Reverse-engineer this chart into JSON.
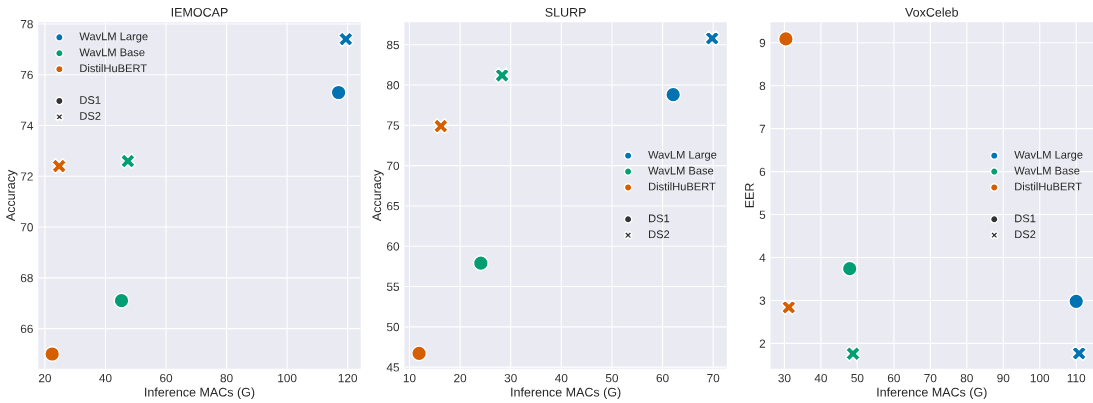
{
  "chart_data": [
    {
      "type": "scatter",
      "title": "IEMOCAP",
      "xlabel": "Inference MACs (G)",
      "ylabel": "Accuracy",
      "xlim": [
        17.8,
        124.3
      ],
      "ylim": [
        64.42,
        78.07
      ],
      "xticks": [
        20,
        40,
        60,
        80,
        100,
        120
      ],
      "yticks": [
        66,
        68,
        70,
        72,
        74,
        76,
        78
      ],
      "grid": true,
      "legend": "top left",
      "series": [
        {
          "name": "DS1",
          "color": "#333333",
          "marker": "circle"
        },
        {
          "name": "DS2",
          "color": "#333333",
          "marker": "cross"
        },
        {
          "name": "WavLM Large",
          "color": "#0173b2",
          "marker": "circle",
          "x": [
            117.0
          ],
          "values": [
            75.3
          ]
        },
        {
          "name": "WavLM Base",
          "color": "#029e73",
          "marker": "circle",
          "x": [
            45.3
          ],
          "values": [
            67.1
          ]
        },
        {
          "name": "DistilHuBERT",
          "color": "#d55e00",
          "marker": "circle",
          "x": [
            22.4
          ],
          "values": [
            65.0
          ]
        },
        {
          "color": "#0173b2",
          "marker": "cross",
          "x": [
            119.4
          ],
          "values": [
            77.4
          ]
        },
        {
          "color": "#029e73",
          "marker": "cross",
          "x": [
            47.4
          ],
          "values": [
            72.6
          ]
        },
        {
          "color": "#d55e00",
          "marker": "cross",
          "x": [
            24.7
          ],
          "values": [
            72.4
          ]
        }
      ]
    },
    {
      "type": "scatter",
      "title": "SLURP",
      "xlabel": "Inference MACs (G)",
      "ylabel": "Accuracy",
      "xlim": [
        9.0,
        72.7
      ],
      "ylim": [
        44.8,
        87.8
      ],
      "xticks": [
        10,
        20,
        30,
        40,
        50,
        60,
        70
      ],
      "yticks": [
        45,
        50,
        55,
        60,
        65,
        70,
        75,
        80,
        85
      ],
      "grid": true,
      "legend": "right",
      "series": [
        {
          "name": "DS1",
          "color": "#333333",
          "marker": "circle"
        },
        {
          "name": "DS2",
          "color": "#333333",
          "marker": "cross"
        },
        {
          "name": "WavLM Large",
          "color": "#0173b2",
          "marker": "circle",
          "x": [
            62.1
          ],
          "values": [
            78.8
          ]
        },
        {
          "name": "WavLM Base",
          "color": "#029e73",
          "marker": "circle",
          "x": [
            24.1
          ],
          "values": [
            57.9
          ]
        },
        {
          "name": "DistilHuBERT",
          "color": "#d55e00",
          "marker": "circle",
          "x": [
            11.9
          ],
          "values": [
            46.7
          ]
        },
        {
          "color": "#0173b2",
          "marker": "cross",
          "x": [
            69.8
          ],
          "values": [
            85.8
          ]
        },
        {
          "color": "#029e73",
          "marker": "cross",
          "x": [
            28.3
          ],
          "values": [
            81.2
          ]
        },
        {
          "color": "#d55e00",
          "marker": "cross",
          "x": [
            16.2
          ],
          "values": [
            74.9
          ]
        }
      ]
    },
    {
      "type": "scatter",
      "title": "VoxCeleb",
      "xlabel": "Inference MACs (G)",
      "ylabel": "EER",
      "xlim": [
        26.2,
        114.6
      ],
      "ylim": [
        1.41,
        9.48
      ],
      "xticks": [
        30,
        40,
        50,
        60,
        70,
        80,
        90,
        100,
        110
      ],
      "yticks": [
        2,
        3,
        4,
        5,
        6,
        7,
        8,
        9
      ],
      "grid": true,
      "legend": "right",
      "series": [
        {
          "name": "DS1",
          "color": "#333333",
          "marker": "circle"
        },
        {
          "name": "DS2",
          "color": "#333333",
          "marker": "cross"
        },
        {
          "name": "WavLM Large",
          "color": "#0173b2",
          "marker": "circle",
          "x": [
            110.0
          ],
          "values": [
            2.98
          ]
        },
        {
          "name": "WavLM Base",
          "color": "#029e73",
          "marker": "circle",
          "x": [
            47.9
          ],
          "values": [
            3.74
          ]
        },
        {
          "name": "DistilHuBERT",
          "color": "#d55e00",
          "marker": "circle",
          "x": [
            30.4
          ],
          "values": [
            9.09
          ]
        },
        {
          "color": "#0173b2",
          "marker": "cross",
          "x": [
            110.8
          ],
          "values": [
            1.77
          ]
        },
        {
          "color": "#029e73",
          "marker": "cross",
          "x": [
            48.8
          ],
          "values": [
            1.76
          ]
        },
        {
          "color": "#d55e00",
          "marker": "cross",
          "x": [
            31.2
          ],
          "values": [
            2.84
          ]
        }
      ]
    }
  ]
}
